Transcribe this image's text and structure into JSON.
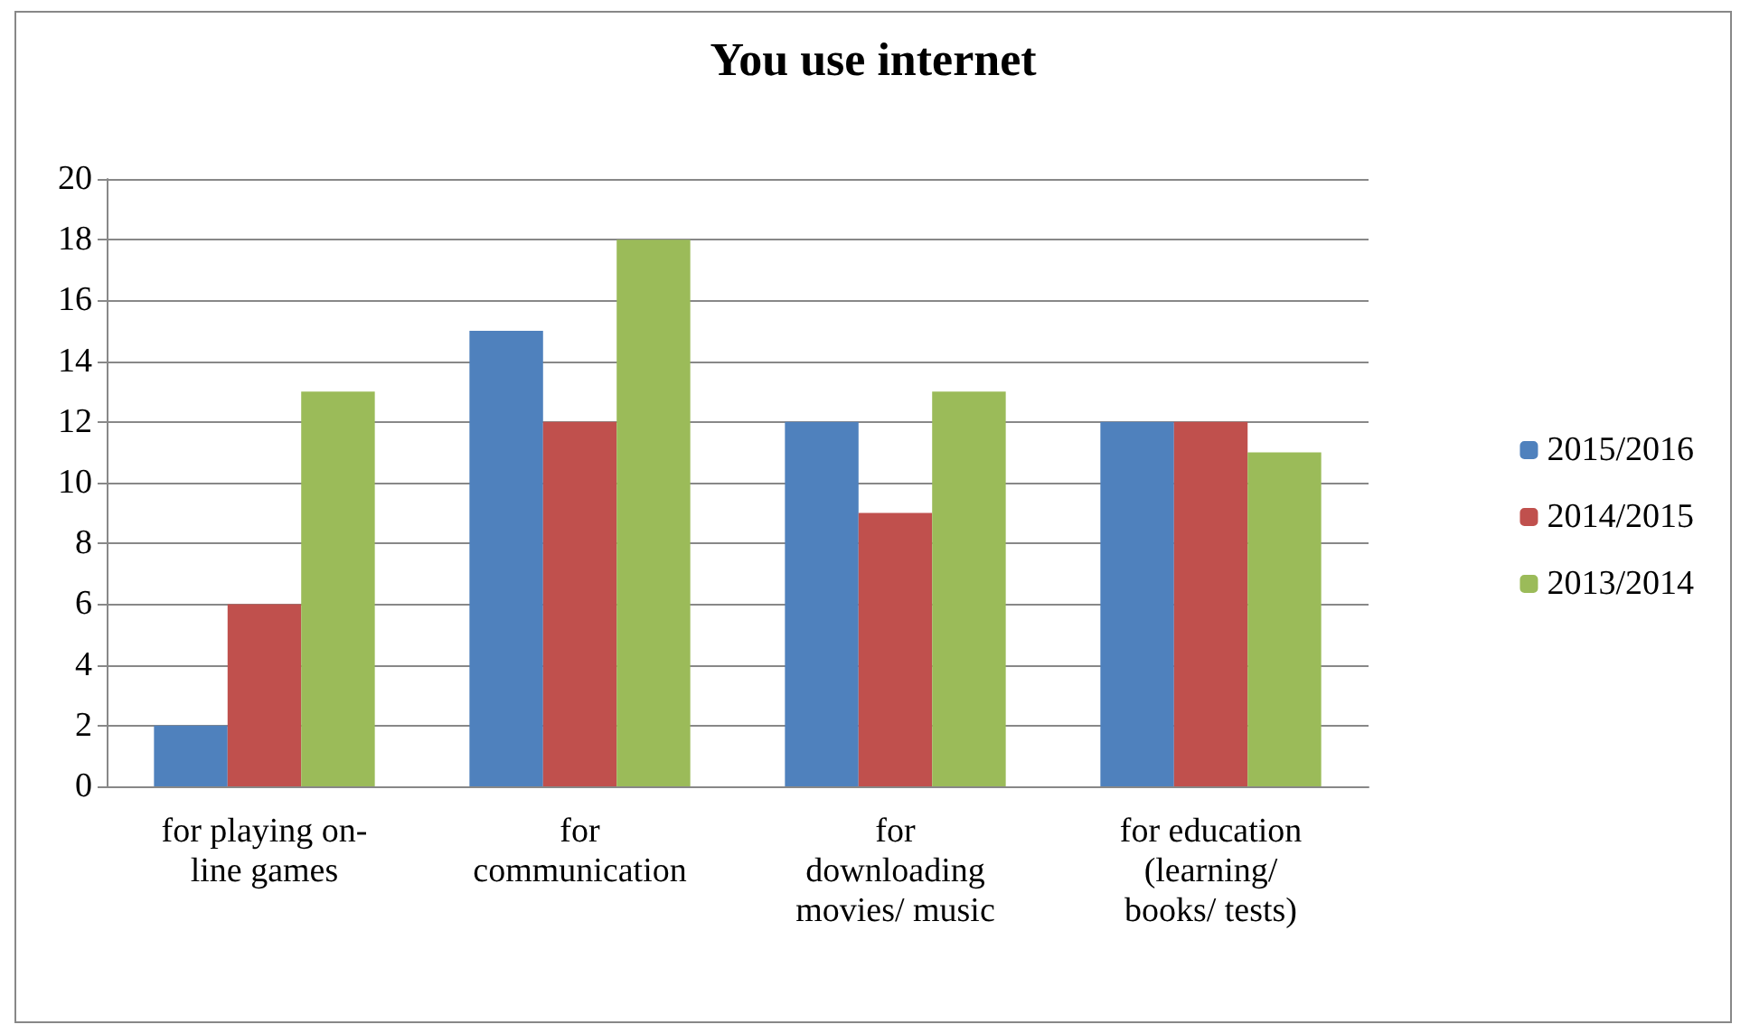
{
  "chart_data": {
    "type": "bar",
    "title": "You use internet",
    "categories": [
      "for playing on-\nline games",
      "for\ncommunication",
      "for\ndownloading\nmovies/ music",
      "for education\n(learning/\nbooks/ tests)"
    ],
    "series": [
      {
        "name": "2015/2016",
        "color": "#4f81bd",
        "values": [
          2,
          15,
          12,
          12
        ]
      },
      {
        "name": "2014/2015",
        "color": "#c0504d",
        "values": [
          6,
          12,
          9,
          12
        ]
      },
      {
        "name": "2013/2014",
        "color": "#9bbb59",
        "values": [
          13,
          18,
          13,
          11
        ]
      }
    ],
    "ylim": [
      0,
      20
    ],
    "yticks": [
      0,
      2,
      4,
      6,
      8,
      10,
      12,
      14,
      16,
      18,
      20
    ],
    "grid": "y",
    "legend": "right"
  }
}
